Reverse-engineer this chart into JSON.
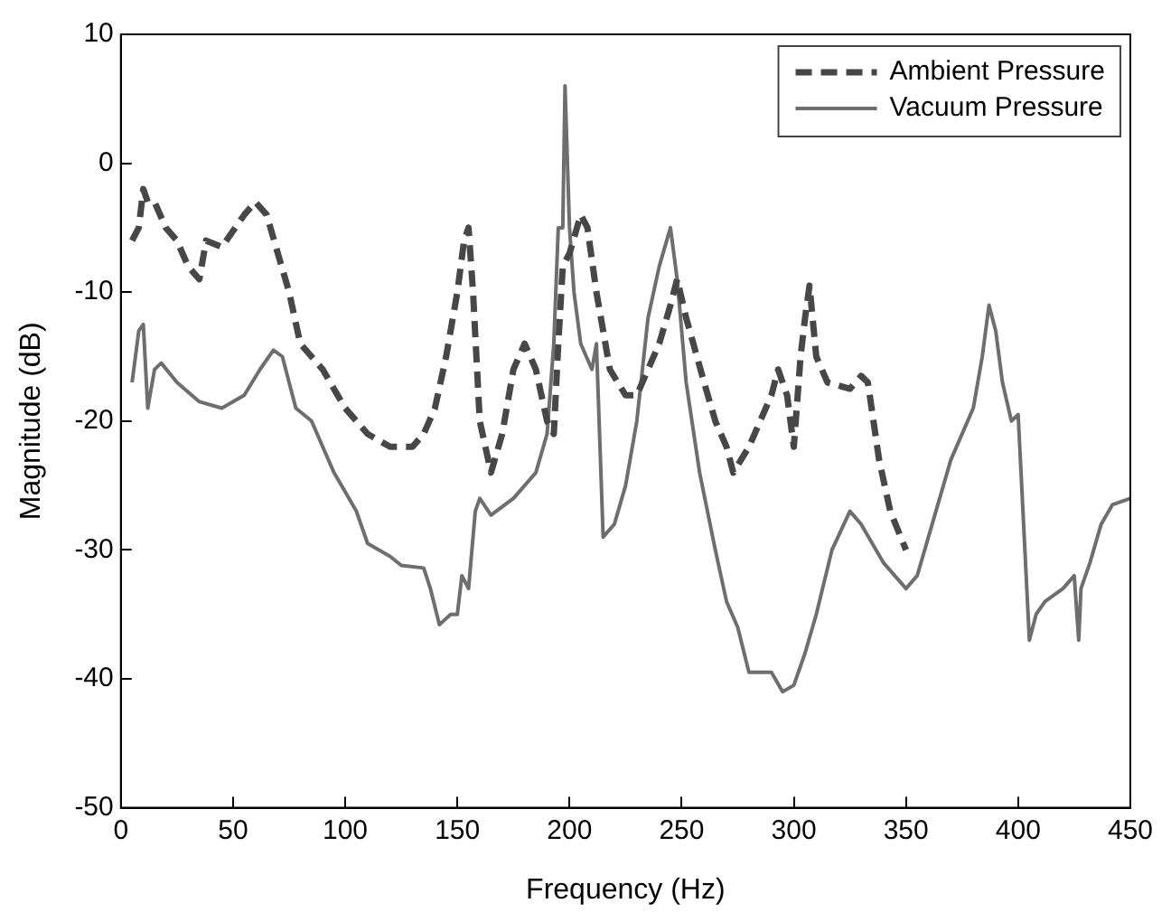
{
  "chart_data": {
    "type": "line",
    "xlabel": "Frequency (Hz)",
    "ylabel": "Magnitude (dB)",
    "xlim": [
      0,
      450
    ],
    "xticks": [
      0,
      50,
      100,
      150,
      200,
      250,
      300,
      350,
      400,
      450
    ],
    "ylim": [
      -50,
      10
    ],
    "yticks": [
      -50,
      -40,
      -30,
      -20,
      -10,
      0,
      10
    ],
    "grid": false,
    "tick_labels": "xy",
    "legend": "top right",
    "marker": "none",
    "series": [
      {
        "name": "Ambient Pressure",
        "color": "#474747",
        "line_style": "dashed",
        "x": [
          5,
          8,
          10,
          12,
          15,
          20,
          25,
          30,
          35,
          38,
          45,
          55,
          60,
          65,
          70,
          75,
          80,
          85,
          90,
          100,
          110,
          120,
          130,
          135,
          140,
          145,
          150,
          153,
          155,
          157,
          160,
          165,
          170,
          175,
          180,
          185,
          190,
          193,
          195,
          197,
          200,
          205,
          208,
          212,
          218,
          225,
          230,
          235,
          240,
          245,
          248,
          252,
          260,
          265,
          270,
          273,
          280,
          285,
          290,
          293,
          297,
          300,
          303,
          305,
          307,
          310,
          315,
          325,
          330,
          333,
          338,
          343,
          350
        ],
        "values": [
          -6,
          -5,
          -2,
          -3,
          -3,
          -5,
          -6,
          -8,
          -9,
          -6,
          -6.5,
          -4,
          -3,
          -4,
          -7,
          -10,
          -14,
          -15,
          -16,
          -19,
          -21,
          -22,
          -22,
          -21,
          -19,
          -15,
          -10,
          -6,
          -5,
          -10,
          -20,
          -24,
          -21,
          -16,
          -14,
          -16,
          -20,
          -21,
          -14,
          -8,
          -7,
          -4,
          -5,
          -10,
          -16,
          -18,
          -18,
          -16,
          -14,
          -11,
          -9,
          -12,
          -17,
          -20,
          -22,
          -24,
          -22,
          -20,
          -18,
          -16,
          -18,
          -22,
          -15,
          -12,
          -9.5,
          -15,
          -17,
          -17.5,
          -16.5,
          -17,
          -23,
          -27,
          -30
        ]
      },
      {
        "name": "Vacuum Pressure",
        "color": "#6e6e6e",
        "line_style": "solid",
        "x": [
          5,
          8,
          10,
          12,
          15,
          18,
          25,
          35,
          45,
          55,
          62,
          68,
          72,
          78,
          85,
          95,
          105,
          110,
          120,
          125,
          135,
          138,
          142,
          147,
          150,
          152,
          155,
          158,
          160,
          165,
          175,
          185,
          190,
          193,
          195,
          197,
          198,
          200,
          202,
          205,
          210,
          212,
          215,
          220,
          225,
          230,
          235,
          240,
          245,
          248,
          252,
          258,
          265,
          270,
          275,
          280,
          290,
          295,
          300,
          305,
          310,
          317,
          325,
          330,
          340,
          350,
          355,
          360,
          370,
          380,
          384,
          387,
          390,
          393,
          397,
          400,
          403,
          405,
          408,
          412,
          420,
          425,
          427,
          428,
          432,
          437,
          442,
          450
        ],
        "values": [
          -17,
          -13,
          -12.5,
          -19,
          -16,
          -15.5,
          -17,
          -18.5,
          -19,
          -18,
          -16,
          -14.5,
          -15,
          -19,
          -20,
          -24,
          -27,
          -29.5,
          -30.5,
          -31.2,
          -31.4,
          -33,
          -35.8,
          -35,
          -35,
          -32,
          -33,
          -27,
          -26,
          -27.3,
          -26,
          -24,
          -21,
          -14,
          -5,
          -5,
          6,
          -5,
          -10,
          -14,
          -16,
          -14,
          -29,
          -28,
          -25,
          -20,
          -12,
          -8,
          -5,
          -9,
          -17,
          -24,
          -30,
          -34,
          -36,
          -39.5,
          -39.5,
          -41,
          -40.5,
          -38,
          -35,
          -30,
          -27,
          -28,
          -31,
          -33,
          -32,
          -29,
          -23,
          -19,
          -15,
          -11,
          -13,
          -17,
          -20,
          -19.5,
          -30,
          -37,
          -35,
          -34,
          -33,
          -32,
          -37,
          -33,
          -31,
          -28,
          -26.5,
          -26
        ]
      }
    ]
  }
}
